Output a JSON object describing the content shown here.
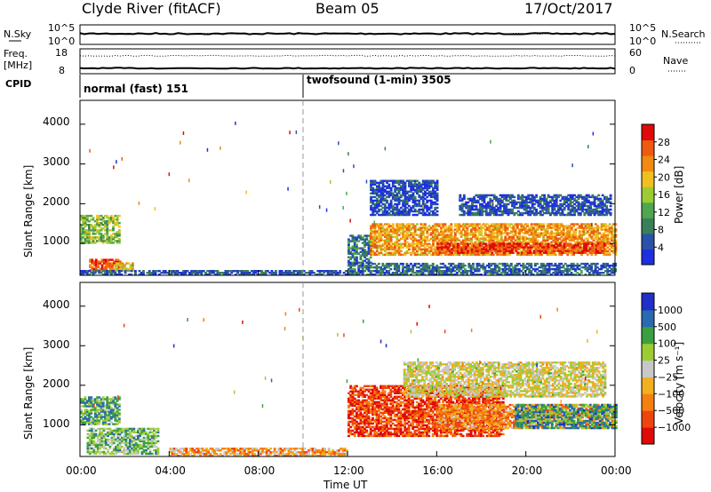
{
  "header": {
    "station": "Clyde River (fitACF)",
    "beam": "Beam 05",
    "date": "17/Oct/2017"
  },
  "colors": {
    "power_scale": [
      "#1f2fe0",
      "#2a52a8",
      "#3a7f5a",
      "#4fa64f",
      "#9ccc33",
      "#f0c020",
      "#f08a10",
      "#ef5a10",
      "#e00a0a"
    ],
    "velocity_scale": [
      "#e00a0a",
      "#f0440f",
      "#f5800f",
      "#f0b020",
      "#c8c8c8",
      "#9ccc33",
      "#3aa040",
      "#2a6ab0",
      "#1f2fc8"
    ]
  },
  "chart_data": [
    {
      "type": "line",
      "name": "noise-panel",
      "ylabel_left": "N.Sky",
      "ylabel_right": "N.Search",
      "left_ticks": [
        "10^5",
        "10^0"
      ],
      "right_ticks": [
        "10^5",
        "10^0"
      ],
      "series": [
        {
          "name": "N.Sky",
          "style": "solid",
          "level": 0.25
        },
        {
          "name": "N.Search",
          "style": "dotted",
          "level": 0.35
        }
      ]
    },
    {
      "type": "line",
      "name": "freq-nave-panel",
      "ylabel_left": "Freq. [MHz]",
      "ylabel_right": "Nave",
      "left_ticks": [
        "18",
        "8"
      ],
      "right_ticks": [
        "60",
        "0"
      ],
      "series": [
        {
          "name": "Freq.",
          "style": "solid",
          "level": 0.22
        },
        {
          "name": "Nave",
          "style": "dotted",
          "level": 0.72
        }
      ]
    },
    {
      "type": "table",
      "name": "cpid-panel",
      "label": "CPID",
      "programs": [
        {
          "text": "normal (fast) 151",
          "start_hour": 0,
          "end_hour": 10
        },
        {
          "text": "twofsound (1-min) 3505",
          "start_hour": 10,
          "end_hour": 24
        }
      ]
    },
    {
      "type": "heatmap",
      "name": "power-panel",
      "quantity": "power",
      "xlim": [
        0,
        24
      ],
      "ylim": [
        200,
        4600
      ],
      "ylabel": "Slant Range [km]",
      "yticks": [
        1000,
        2000,
        3000,
        4000
      ],
      "colorbar_label": "Power [dB]",
      "colorbar_ticks": [
        "28",
        "24",
        "20",
        "16",
        "12",
        "8",
        "4"
      ],
      "regions": [
        {
          "t0": 0.0,
          "t1": 1.8,
          "r0": 1000,
          "r1": 1700,
          "level": 0.45
        },
        {
          "t0": 0.4,
          "t1": 1.8,
          "r0": 300,
          "r1": 600,
          "level": 0.85
        },
        {
          "t0": 1.5,
          "t1": 2.4,
          "r0": 300,
          "r1": 500,
          "level": 0.6
        },
        {
          "t0": 0.0,
          "t1": 12.0,
          "r0": 200,
          "r1": 330,
          "level": 0.15
        },
        {
          "t0": 12.0,
          "t1": 13.0,
          "r0": 500,
          "r1": 1200,
          "level": 0.25
        },
        {
          "t0": 13.0,
          "t1": 24.0,
          "r0": 700,
          "r1": 1500,
          "level": 0.7
        },
        {
          "t0": 16.0,
          "t1": 23.5,
          "r0": 750,
          "r1": 1000,
          "level": 0.9
        },
        {
          "t0": 13.0,
          "t1": 16.0,
          "r0": 1700,
          "r1": 2600,
          "level": 0.12
        },
        {
          "t0": 17.0,
          "t1": 23.8,
          "r0": 1700,
          "r1": 2200,
          "level": 0.15
        },
        {
          "t0": 12.0,
          "t1": 24.0,
          "r0": 200,
          "r1": 500,
          "level": 0.2
        }
      ]
    },
    {
      "type": "heatmap",
      "name": "velocity-panel",
      "quantity": "velocity",
      "xlim": [
        0,
        24
      ],
      "ylim": [
        200,
        4600
      ],
      "ylabel": "Slant Range [km]",
      "yticks": [
        1000,
        2000,
        3000,
        4000
      ],
      "xticks": [
        "00:00",
        "04:00",
        "08:00",
        "12:00",
        "16:00",
        "20:00",
        "00:00"
      ],
      "xlabel": "Time UT",
      "colorbar_label": "Velocity [m s⁻¹]",
      "colorbar_ticks": [
        "1000",
        "500",
        "100",
        "25",
        "−25",
        "−100",
        "−500",
        "−1000"
      ],
      "regions": [
        {
          "t0": 0.0,
          "t1": 1.8,
          "r0": 1000,
          "r1": 1700,
          "level": 0.7
        },
        {
          "t0": 0.3,
          "t1": 3.5,
          "r0": 250,
          "r1": 900,
          "level": 0.65
        },
        {
          "t0": 4.0,
          "t1": 12.0,
          "r0": 200,
          "r1": 400,
          "level": 0.35
        },
        {
          "t0": 12.0,
          "t1": 19.0,
          "r0": 700,
          "r1": 2000,
          "level": 0.15
        },
        {
          "t0": 16.0,
          "t1": 24.0,
          "r0": 900,
          "r1": 1500,
          "level": 0.3
        },
        {
          "t0": 19.5,
          "t1": 24.0,
          "r0": 900,
          "r1": 1500,
          "level": 0.75
        },
        {
          "t0": 14.5,
          "t1": 23.5,
          "r0": 1700,
          "r1": 2600,
          "level": 0.5
        }
      ]
    }
  ]
}
